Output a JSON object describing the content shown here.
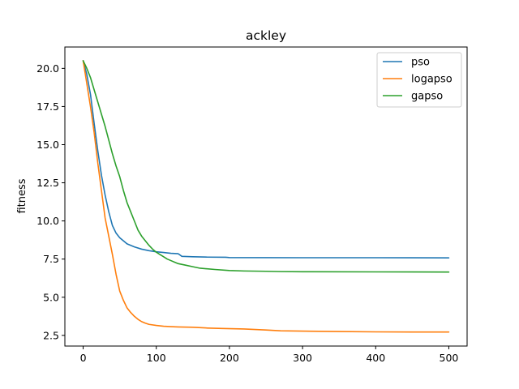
{
  "chart_data": {
    "type": "line",
    "title": "ackley",
    "xlabel": "",
    "ylabel": "fitness",
    "xlim": [
      -25,
      525
    ],
    "ylim": [
      1.8,
      21.4
    ],
    "xticks": [
      0,
      100,
      200,
      300,
      400,
      500
    ],
    "yticks": [
      2.5,
      5.0,
      7.5,
      10.0,
      12.5,
      15.0,
      17.5,
      20.0
    ],
    "ytick_labels": [
      "2.5",
      "5.0",
      "7.5",
      "10.0",
      "12.5",
      "15.0",
      "17.5",
      "20.0"
    ],
    "grid": false,
    "legend": "top-right",
    "series": [
      {
        "name": "pso",
        "color": "#1f77b4",
        "points": [
          [
            0,
            20.5
          ],
          [
            5,
            19.6
          ],
          [
            10,
            18.3
          ],
          [
            15,
            16.4
          ],
          [
            20,
            14.6
          ],
          [
            25,
            13.0
          ],
          [
            30,
            11.7
          ],
          [
            35,
            10.6
          ],
          [
            40,
            9.7
          ],
          [
            45,
            9.2
          ],
          [
            50,
            8.9
          ],
          [
            55,
            8.7
          ],
          [
            60,
            8.5
          ],
          [
            65,
            8.4
          ],
          [
            70,
            8.3
          ],
          [
            80,
            8.15
          ],
          [
            90,
            8.05
          ],
          [
            100,
            7.98
          ],
          [
            110,
            7.93
          ],
          [
            120,
            7.88
          ],
          [
            130,
            7.85
          ],
          [
            135,
            7.68
          ],
          [
            150,
            7.65
          ],
          [
            170,
            7.63
          ],
          [
            195,
            7.62
          ],
          [
            200,
            7.6
          ],
          [
            300,
            7.59
          ],
          [
            400,
            7.59
          ],
          [
            500,
            7.58
          ]
        ]
      },
      {
        "name": "logapso",
        "color": "#ff7f0e",
        "points": [
          [
            0,
            20.5
          ],
          [
            5,
            19.0
          ],
          [
            10,
            17.5
          ],
          [
            15,
            15.8
          ],
          [
            20,
            13.8
          ],
          [
            25,
            12.0
          ],
          [
            30,
            10.2
          ],
          [
            35,
            9.0
          ],
          [
            40,
            7.8
          ],
          [
            45,
            6.5
          ],
          [
            50,
            5.4
          ],
          [
            55,
            4.8
          ],
          [
            60,
            4.3
          ],
          [
            65,
            4.0
          ],
          [
            70,
            3.75
          ],
          [
            75,
            3.55
          ],
          [
            80,
            3.4
          ],
          [
            85,
            3.3
          ],
          [
            90,
            3.22
          ],
          [
            100,
            3.15
          ],
          [
            110,
            3.1
          ],
          [
            120,
            3.07
          ],
          [
            130,
            3.05
          ],
          [
            150,
            3.03
          ],
          [
            170,
            2.98
          ],
          [
            190,
            2.95
          ],
          [
            220,
            2.92
          ],
          [
            250,
            2.85
          ],
          [
            270,
            2.8
          ],
          [
            300,
            2.78
          ],
          [
            350,
            2.75
          ],
          [
            400,
            2.73
          ],
          [
            450,
            2.72
          ],
          [
            500,
            2.72
          ]
        ]
      },
      {
        "name": "gapso",
        "color": "#2ca02c",
        "points": [
          [
            0,
            20.5
          ],
          [
            5,
            20.0
          ],
          [
            10,
            19.4
          ],
          [
            15,
            18.6
          ],
          [
            20,
            17.8
          ],
          [
            25,
            17.0
          ],
          [
            30,
            16.2
          ],
          [
            35,
            15.3
          ],
          [
            40,
            14.4
          ],
          [
            45,
            13.6
          ],
          [
            50,
            12.9
          ],
          [
            55,
            12.0
          ],
          [
            60,
            11.2
          ],
          [
            65,
            10.6
          ],
          [
            70,
            10.0
          ],
          [
            75,
            9.4
          ],
          [
            80,
            9.0
          ],
          [
            85,
            8.7
          ],
          [
            90,
            8.4
          ],
          [
            95,
            8.15
          ],
          [
            100,
            7.95
          ],
          [
            105,
            7.8
          ],
          [
            110,
            7.65
          ],
          [
            115,
            7.5
          ],
          [
            120,
            7.4
          ],
          [
            125,
            7.3
          ],
          [
            130,
            7.2
          ],
          [
            140,
            7.1
          ],
          [
            150,
            7.0
          ],
          [
            160,
            6.9
          ],
          [
            180,
            6.82
          ],
          [
            200,
            6.75
          ],
          [
            220,
            6.72
          ],
          [
            250,
            6.7
          ],
          [
            270,
            6.68
          ],
          [
            300,
            6.67
          ],
          [
            400,
            6.66
          ],
          [
            500,
            6.65
          ]
        ]
      }
    ]
  }
}
